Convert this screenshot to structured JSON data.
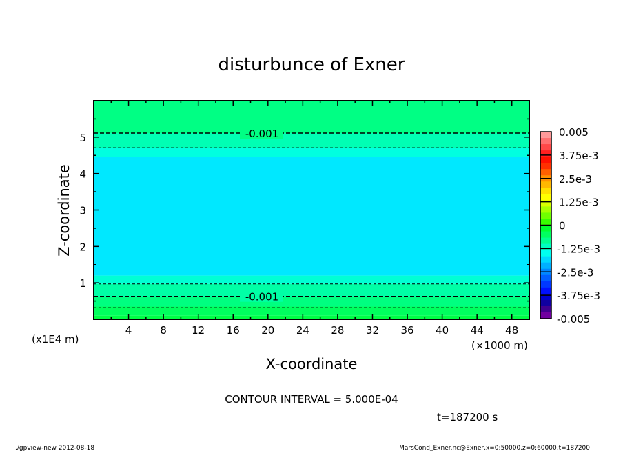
{
  "chart_data": {
    "type": "heatmap",
    "title": "disturbunce of Exner",
    "xlabel": "X-coordinate",
    "ylabel": "Z-coordinate",
    "x_unit": "(×1000 m)",
    "y_unit": "(x1E4 m)",
    "xlim": [
      0,
      50
    ],
    "ylim": [
      0,
      6
    ],
    "x_ticks": [
      4,
      8,
      12,
      16,
      20,
      24,
      28,
      32,
      36,
      40,
      44,
      48
    ],
    "y_ticks": [
      1,
      2,
      3,
      4,
      5
    ],
    "bands": [
      {
        "z": [
          0,
          0.1
        ],
        "color": "#00ff44"
      },
      {
        "z": [
          0.1,
          0.35
        ],
        "color": "#00ff5e"
      },
      {
        "z": [
          0.35,
          0.62
        ],
        "color": "#00ff80"
      },
      {
        "z": [
          0.62,
          0.97
        ],
        "color": "#00ffa6"
      },
      {
        "z": [
          0.97,
          1.2
        ],
        "color": "#00ffd4"
      },
      {
        "z": [
          1.2,
          4.45
        ],
        "color": "#00e8ff"
      },
      {
        "z": [
          4.45,
          4.71
        ],
        "color": "#00ffe0"
      },
      {
        "z": [
          4.71,
          5.11
        ],
        "color": "#00ffb4"
      },
      {
        "z": [
          5.11,
          6
        ],
        "color": "#00ff84"
      }
    ],
    "contours": [
      {
        "z": 5.11,
        "label": "-0.001"
      },
      {
        "z": 4.71,
        "label": ""
      },
      {
        "z": 0.97,
        "label": ""
      },
      {
        "z": 0.63,
        "label": "-0.001"
      },
      {
        "z": 0.32,
        "label": ""
      }
    ],
    "colorbar": {
      "tick_labels": [
        "0.005",
        "3.75e-3",
        "2.5e-3",
        "1.25e-3",
        "0",
        "-1.25e-3",
        "-2.5e-3",
        "-3.75e-3",
        "-0.005"
      ],
      "colors": [
        "#ff9a9a",
        "#ff7070",
        "#ff4848",
        "#ff2020",
        "#ff1000",
        "#ff3000",
        "#ff6000",
        "#ff9000",
        "#ffb800",
        "#ffe000",
        "#ffff00",
        "#d8ff00",
        "#a8ff00",
        "#70ff00",
        "#38ff00",
        "#00ff30",
        "#00ff60",
        "#00ff90",
        "#00ffc0",
        "#00fff0",
        "#00d8ff",
        "#00b0ff",
        "#0088ff",
        "#0060ff",
        "#0038ff",
        "#0010ff",
        "#0000d0",
        "#1000a0",
        "#400090",
        "#7000a0"
      ]
    },
    "contour_interval": "CONTOUR INTERVAL = 5.000E-04",
    "time": "t=187200 s"
  },
  "footer": {
    "left": "./gpview-new  2012-08-18",
    "right": "MarsCond_Exner.nc@Exner,x=0:50000,z=0:60000,t=187200"
  }
}
